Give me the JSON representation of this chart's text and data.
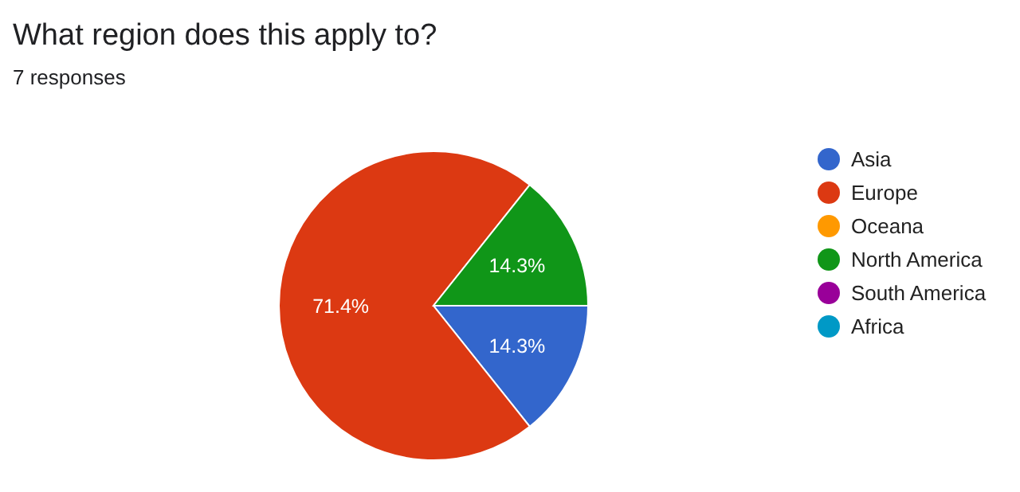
{
  "chart_data": {
    "type": "pie",
    "title": "What region does this apply to?",
    "subtitle": "7 responses",
    "categories": [
      "Asia",
      "Europe",
      "Oceana",
      "North America",
      "South America",
      "Africa"
    ],
    "values": [
      14.3,
      71.4,
      0,
      14.3,
      0,
      0
    ],
    "colors": [
      "#3366cc",
      "#dc3912",
      "#ff9900",
      "#109618",
      "#990099",
      "#0099c6"
    ],
    "value_labels": [
      "14.3%",
      "71.4%",
      null,
      "14.3%",
      null,
      null
    ],
    "legend": "right"
  }
}
